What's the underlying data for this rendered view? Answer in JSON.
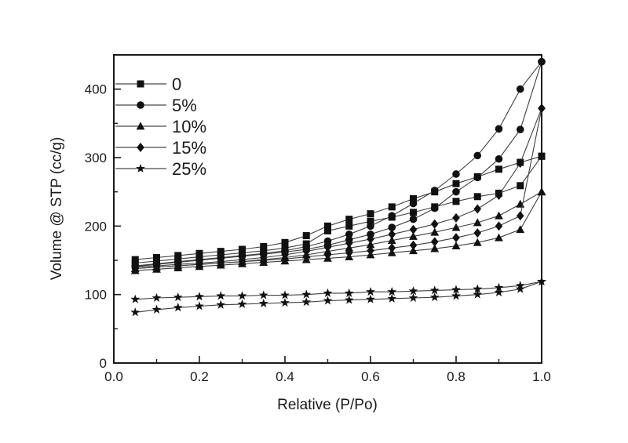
{
  "chart_data": {
    "type": "line",
    "title": "",
    "xlabel": "Relative (P/Po)",
    "ylabel": "Volume @ STP (cc/g)",
    "xlim": [
      0.0,
      1.0
    ],
    "ylim": [
      0,
      450
    ],
    "grid": false,
    "x_major_ticks": [
      0.0,
      0.2,
      0.4,
      0.6,
      0.8,
      1.0
    ],
    "x_tick_labels": [
      "0.0",
      "0.2",
      "0.4",
      "0.6",
      "0.8",
      "1.0"
    ],
    "x_minor_ticks": [
      0.1,
      0.3,
      0.5,
      0.7,
      0.9
    ],
    "y_major_ticks": [
      0,
      100,
      200,
      300,
      400
    ],
    "y_tick_labels": [
      "0",
      "100",
      "200",
      "300",
      "400"
    ],
    "y_minor_ticks": [
      50,
      150,
      250,
      350
    ],
    "legend": {
      "position": "top-left",
      "entries": [
        {
          "label": "0",
          "marker": "square"
        },
        {
          "label": "5%",
          "marker": "circle"
        },
        {
          "label": "10%",
          "marker": "triangle"
        },
        {
          "label": "15%",
          "marker": "diamond"
        },
        {
          "label": "25%",
          "marker": "star"
        }
      ]
    },
    "x": [
      0.05,
      0.1,
      0.15,
      0.2,
      0.25,
      0.3,
      0.35,
      0.4,
      0.45,
      0.5,
      0.55,
      0.6,
      0.65,
      0.7,
      0.75,
      0.8,
      0.85,
      0.9,
      0.95,
      1.0
    ],
    "series": [
      {
        "name": "0",
        "marker": "square",
        "adsorption": [
          146,
          149,
          152,
          155,
          158,
          161,
          164,
          168,
          174,
          193,
          200,
          207,
          213,
          220,
          228,
          236,
          243,
          248,
          259,
          302
        ],
        "desorption": [
          151,
          154,
          157,
          160,
          163,
          166,
          170,
          176,
          186,
          200,
          210,
          218,
          228,
          240,
          250,
          262,
          272,
          283,
          293,
          302
        ]
      },
      {
        "name": "5%",
        "marker": "circle",
        "adsorption": [
          141,
          144,
          147,
          150,
          153,
          156,
          159,
          162,
          166,
          172,
          180,
          188,
          198,
          210,
          226,
          250,
          271,
          298,
          341,
          440
        ],
        "desorption": [
          142,
          145,
          148,
          151,
          154,
          157,
          160,
          164,
          170,
          178,
          188,
          200,
          215,
          233,
          252,
          276,
          303,
          342,
          400,
          440
        ]
      },
      {
        "name": "10%",
        "marker": "triangle",
        "adsorption": [
          135,
          137,
          139,
          141,
          143,
          145,
          147,
          149,
          151,
          153,
          155,
          158,
          161,
          164,
          167,
          171,
          176,
          183,
          195,
          250
        ],
        "desorption": [
          138,
          140,
          142,
          144,
          146,
          148,
          151,
          154,
          158,
          163,
          168,
          173,
          179,
          185,
          191,
          198,
          205,
          215,
          232,
          250
        ]
      },
      {
        "name": "15%",
        "marker": "diamond",
        "adsorption": [
          138,
          140,
          142,
          144,
          146,
          148,
          150,
          152,
          155,
          158,
          161,
          164,
          168,
          172,
          177,
          183,
          190,
          200,
          215,
          372
        ],
        "desorption": [
          140,
          142,
          144,
          146,
          148,
          151,
          154,
          158,
          163,
          169,
          175,
          181,
          188,
          195,
          203,
          212,
          225,
          245,
          292,
          372
        ]
      },
      {
        "name": "25%",
        "marker": "star",
        "adsorption": [
          74,
          78,
          81,
          83,
          85,
          86,
          87,
          88,
          89,
          91,
          92,
          93,
          94,
          95,
          96,
          98,
          100,
          103,
          108,
          119
        ],
        "desorption": [
          93,
          95,
          96,
          97,
          98,
          98,
          99,
          99,
          100,
          102,
          102,
          104,
          104,
          105,
          106,
          107,
          108,
          110,
          113,
          119
        ]
      }
    ],
    "colors": {
      "axis": "#1a1a1a",
      "line": "#3f3f3f",
      "marker": "#111111",
      "legend_line": "#8c8c8c",
      "background": "#ffffff"
    }
  }
}
